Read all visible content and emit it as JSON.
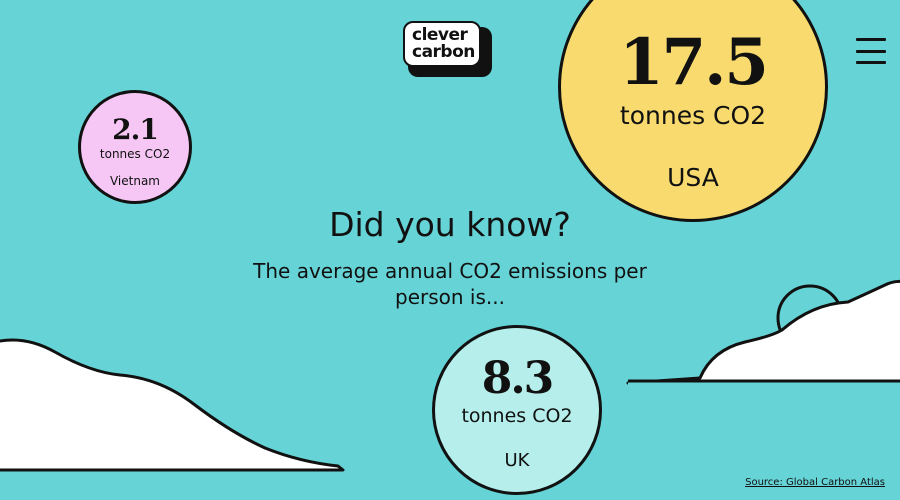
{
  "brand": {
    "logo_line1": "clever",
    "logo_line2": "carbon"
  },
  "header": {
    "menu_icon": "hamburger-menu-icon"
  },
  "main": {
    "headline": "Did you know?",
    "subline": "The average annual CO2 emissions per person is..."
  },
  "stats": [
    {
      "value": "2.1",
      "unit": "tonnes CO2",
      "country": "Vietnam",
      "color": "#f6c7f4"
    },
    {
      "value": "17.5",
      "unit": "tonnes CO2",
      "country": "USA",
      "color": "#f8da6e"
    },
    {
      "value": "8.3",
      "unit": "tonnes CO2",
      "country": "UK",
      "color": "#b5eeeb"
    }
  ],
  "footer": {
    "source": "Source: Global Carbon Atlas"
  },
  "colors": {
    "background": "#66d3d6",
    "outline": "#111111",
    "cloud": "#ffffff"
  }
}
